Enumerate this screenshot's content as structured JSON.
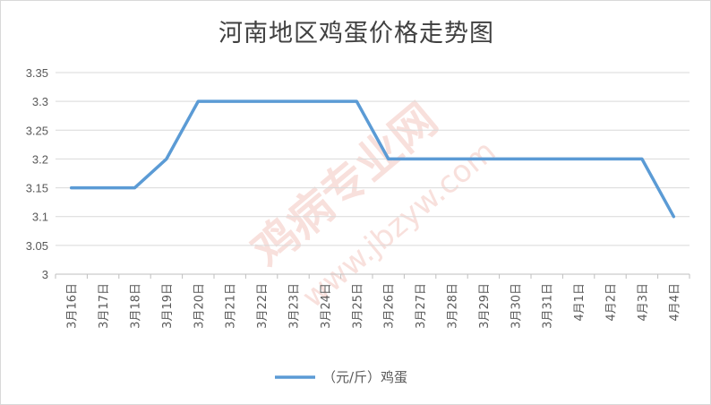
{
  "chart_data": {
    "type": "line",
    "title": "河南地区鸡蛋价格走势图",
    "categories": [
      "3月16日",
      "3月17日",
      "3月18日",
      "3月19日",
      "3月20日",
      "3月21日",
      "3月22日",
      "3月23日",
      "3月24日",
      "3月25日",
      "3月26日",
      "3月27日",
      "3月28日",
      "3月29日",
      "3月30日",
      "3月31日",
      "4月1日",
      "4月2日",
      "4月3日",
      "4月4日"
    ],
    "series": [
      {
        "name": "（元/斤）鸡蛋",
        "values": [
          3.15,
          3.15,
          3.15,
          3.2,
          3.3,
          3.3,
          3.3,
          3.3,
          3.3,
          3.3,
          3.2,
          3.2,
          3.2,
          3.2,
          3.2,
          3.2,
          3.2,
          3.2,
          3.2,
          3.1
        ],
        "color": "#5b9bd5"
      }
    ],
    "ylim": [
      3,
      3.35
    ],
    "yticks": [
      "3",
      "3.05",
      "3.1",
      "3.15",
      "3.2",
      "3.25",
      "3.3",
      "3.35"
    ],
    "grid": true,
    "legend": "bottom",
    "watermark": [
      "鸡病专业网",
      "www.jbzyw.com"
    ]
  }
}
